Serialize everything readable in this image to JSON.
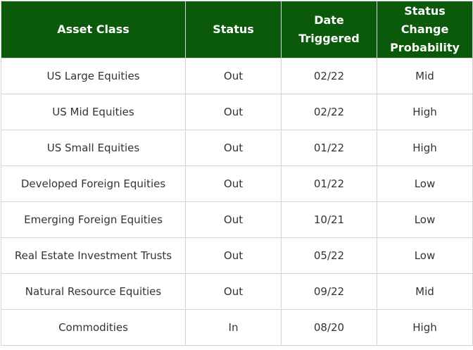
{
  "table": {
    "headers": {
      "asset_class": "Asset Class",
      "status": "Status",
      "date_triggered": "Date Triggered",
      "status_change_probability": "Status Change Probability"
    },
    "rows": [
      {
        "asset_class": "US Large Equities",
        "status": "Out",
        "date_triggered": "02/22",
        "probability": "Mid"
      },
      {
        "asset_class": "US Mid Equities",
        "status": "Out",
        "date_triggered": "02/22",
        "probability": "High"
      },
      {
        "asset_class": "US Small Equities",
        "status": "Out",
        "date_triggered": "01/22",
        "probability": "High"
      },
      {
        "asset_class": "Developed Foreign Equities",
        "status": "Out",
        "date_triggered": "01/22",
        "probability": "Low"
      },
      {
        "asset_class": "Emerging Foreign Equities",
        "status": "Out",
        "date_triggered": "10/21",
        "probability": "Low"
      },
      {
        "asset_class": "Real Estate Investment Trusts",
        "status": "Out",
        "date_triggered": "05/22",
        "probability": "Low"
      },
      {
        "asset_class": "Natural Resource Equities",
        "status": "Out",
        "date_triggered": "09/22",
        "probability": "Mid"
      },
      {
        "asset_class": "Commodities",
        "status": "In",
        "date_triggered": "08/20",
        "probability": "High"
      }
    ]
  },
  "colors": {
    "header_background": "#0b5a0b",
    "header_text": "#ffffff",
    "cell_text": "#333333",
    "grid": "#d4d4d4"
  }
}
